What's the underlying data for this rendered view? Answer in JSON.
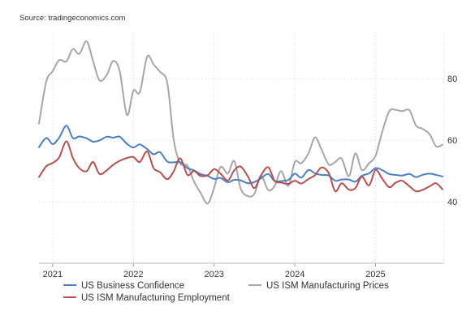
{
  "source": "Source: tradingeconomics.com",
  "chart_data": {
    "type": "line",
    "title": "",
    "xlabel": "",
    "ylabel": "",
    "xlim": [
      2020.83,
      2025.85
    ],
    "ylim": [
      20,
      95
    ],
    "y_ticks": [
      40,
      60,
      80
    ],
    "x_ticks": [
      {
        "label": "2021",
        "value": 2021.0
      },
      {
        "label": "2022",
        "value": 2022.0
      },
      {
        "label": "2023",
        "value": 2023.0
      },
      {
        "label": "2024",
        "value": 2024.0
      },
      {
        "label": "2025",
        "value": 2025.0
      }
    ],
    "grid": true,
    "legend": "bottom",
    "series": [
      {
        "name": "US Business Confidence",
        "color": "#4a7fc1",
        "x": [
          2020.83,
          2020.92,
          2021.0,
          2021.08,
          2021.17,
          2021.25,
          2021.33,
          2021.42,
          2021.5,
          2021.58,
          2021.67,
          2021.75,
          2021.83,
          2021.92,
          2022.0,
          2022.08,
          2022.17,
          2022.25,
          2022.33,
          2022.42,
          2022.5,
          2022.58,
          2022.67,
          2022.75,
          2022.83,
          2022.92,
          2023.0,
          2023.08,
          2023.17,
          2023.25,
          2023.33,
          2023.42,
          2023.5,
          2023.58,
          2023.67,
          2023.75,
          2023.83,
          2023.92,
          2024.0,
          2024.08,
          2024.17,
          2024.25,
          2024.33,
          2024.42,
          2024.5,
          2024.58,
          2024.67,
          2024.75,
          2024.83,
          2024.92,
          2025.0,
          2025.08,
          2025.17,
          2025.25,
          2025.33,
          2025.42,
          2025.5,
          2025.58,
          2025.67,
          2025.75,
          2025.83
        ],
        "values": [
          57.7,
          60.7,
          58.7,
          60.8,
          64.7,
          60.7,
          61.2,
          60.6,
          59.5,
          59.9,
          61.1,
          60.8,
          61.1,
          58.8,
          57.6,
          58.6,
          57.1,
          55.4,
          56.1,
          53.0,
          52.8,
          52.8,
          50.9,
          50.2,
          49.0,
          48.4,
          47.4,
          47.7,
          46.3,
          47.1,
          46.9,
          46.0,
          46.4,
          47.6,
          49.0,
          46.7,
          46.7,
          47.1,
          49.1,
          47.8,
          50.3,
          49.2,
          48.7,
          48.5,
          46.8,
          47.2,
          47.2,
          46.5,
          48.4,
          49.2,
          50.9,
          50.3,
          49.0,
          48.7,
          48.5,
          49.0,
          48.0,
          48.7,
          49.1,
          48.7,
          48.2
        ]
      },
      {
        "name": "US ISM Manufacturing Prices",
        "color": "#a6a6a6",
        "x": [
          2020.83,
          2020.92,
          2021.0,
          2021.08,
          2021.17,
          2021.25,
          2021.33,
          2021.42,
          2021.5,
          2021.58,
          2021.67,
          2021.75,
          2021.83,
          2021.92,
          2022.0,
          2022.08,
          2022.17,
          2022.25,
          2022.33,
          2022.42,
          2022.5,
          2022.58,
          2022.67,
          2022.75,
          2022.83,
          2022.92,
          2023.0,
          2023.08,
          2023.17,
          2023.25,
          2023.33,
          2023.42,
          2023.5,
          2023.58,
          2023.67,
          2023.75,
          2023.83,
          2023.92,
          2024.0,
          2024.08,
          2024.17,
          2024.25,
          2024.33,
          2024.42,
          2024.5,
          2024.58,
          2024.67,
          2024.75,
          2024.83,
          2024.92,
          2025.0,
          2025.08,
          2025.17,
          2025.25,
          2025.33,
          2025.42,
          2025.5,
          2025.58,
          2025.67,
          2025.75,
          2025.83
        ],
        "values": [
          65.4,
          79.0,
          82.4,
          86.0,
          85.6,
          89.6,
          88.0,
          92.1,
          85.7,
          79.4,
          81.2,
          85.7,
          82.4,
          68.2,
          76.1,
          75.6,
          87.1,
          84.6,
          82.2,
          78.5,
          60.0,
          52.5,
          51.7,
          46.6,
          43.0,
          39.4,
          44.5,
          51.3,
          49.2,
          53.2,
          44.2,
          41.8,
          42.6,
          48.4,
          43.8,
          45.1,
          49.9,
          45.2,
          52.9,
          52.5,
          55.8,
          60.9,
          57.0,
          52.1,
          52.9,
          54.0,
          48.3,
          55.7,
          50.3,
          52.5,
          54.9,
          62.4,
          69.4,
          69.8,
          69.4,
          69.7,
          64.8,
          63.7,
          61.9,
          58.0,
          58.5
        ]
      },
      {
        "name": "US ISM Manufacturing Employment",
        "color": "#b5504f",
        "x": [
          2020.83,
          2020.92,
          2021.0,
          2021.08,
          2021.17,
          2021.25,
          2021.33,
          2021.42,
          2021.5,
          2021.58,
          2021.67,
          2021.75,
          2021.83,
          2021.92,
          2022.0,
          2022.08,
          2022.17,
          2022.25,
          2022.33,
          2022.42,
          2022.5,
          2022.58,
          2022.67,
          2022.75,
          2022.83,
          2022.92,
          2023.0,
          2023.08,
          2023.17,
          2023.25,
          2023.33,
          2023.42,
          2023.5,
          2023.58,
          2023.67,
          2023.75,
          2023.83,
          2023.92,
          2024.0,
          2024.08,
          2024.17,
          2024.25,
          2024.33,
          2024.42,
          2024.5,
          2024.58,
          2024.67,
          2024.75,
          2024.83,
          2024.92,
          2025.0,
          2025.08,
          2025.17,
          2025.25,
          2025.33,
          2025.42,
          2025.5,
          2025.58,
          2025.67,
          2025.75,
          2025.83
        ],
        "values": [
          48.0,
          51.5,
          52.6,
          54.4,
          59.6,
          54.2,
          50.9,
          49.9,
          52.9,
          49.0,
          50.2,
          52.0,
          53.3,
          54.2,
          54.5,
          52.9,
          56.3,
          50.9,
          49.6,
          47.3,
          49.9,
          54.1,
          48.7,
          50.0,
          48.4,
          48.6,
          50.6,
          49.1,
          46.9,
          50.2,
          51.4,
          48.1,
          44.4,
          48.5,
          51.2,
          46.8,
          46.2,
          45.8,
          46.8,
          45.9,
          47.4,
          48.6,
          51.1,
          49.3,
          43.4,
          46.0,
          43.9,
          44.4,
          48.1,
          45.3,
          50.3,
          47.6,
          44.7,
          46.2,
          46.8,
          45.0,
          43.4,
          43.8,
          45.0,
          46.0,
          44.0
        ]
      }
    ]
  }
}
